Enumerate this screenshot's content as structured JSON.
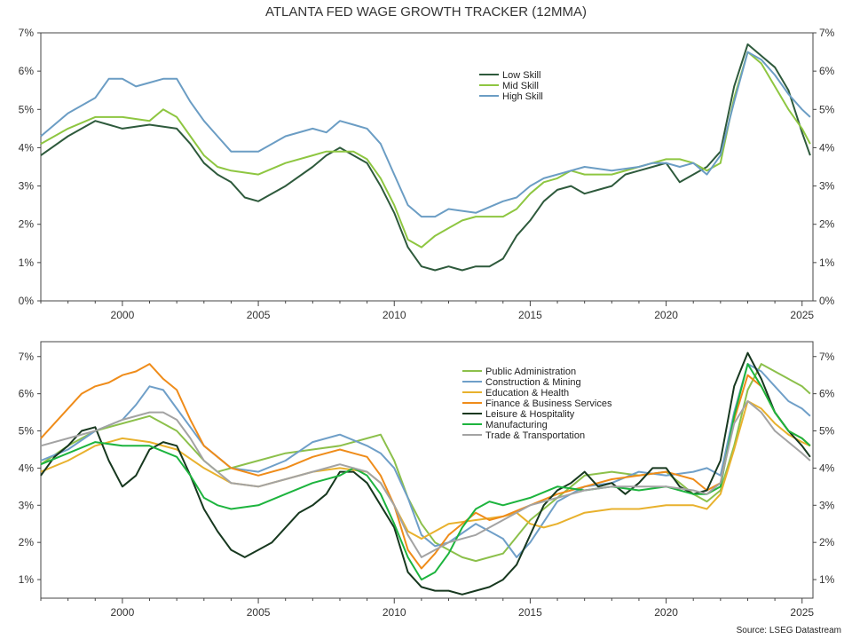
{
  "title": "ATLANTA FED WAGE GROWTH TRACKER (12MMA)",
  "source": "Source: LSEG Datastream",
  "colors": {
    "low_skill": "#2e5a3c",
    "mid_skill": "#8ec641",
    "high_skill": "#6b9dc4",
    "public_admin": "#8cc04b",
    "construction": "#6f9fc8",
    "education": "#e8b12d",
    "finance": "#ef8c1a",
    "leisure": "#17381f",
    "manufacturing": "#1db43e",
    "trade": "#a3a3a3"
  },
  "chart_data": [
    {
      "type": "line",
      "title": "ATLANTA FED WAGE GROWTH TRACKER (12MMA)",
      "x_ticks": [
        "2000",
        "2005",
        "2010",
        "2015",
        "2020",
        "2025"
      ],
      "y_ticks": [
        "0%",
        "1%",
        "2%",
        "3%",
        "4%",
        "5%",
        "6%",
        "7%"
      ],
      "xlim": [
        1997.0,
        2025.4
      ],
      "ylim": [
        0,
        7
      ],
      "legend_position": "top-center",
      "series": [
        {
          "name": "Low Skill",
          "color_key": "low_skill",
          "x": [
            1997.0,
            1998.0,
            1999.0,
            1999.5,
            2000.0,
            2001.0,
            2002.0,
            2002.5,
            2003.0,
            2003.5,
            2004.0,
            2004.5,
            2005.0,
            2006.0,
            2007.0,
            2007.5,
            2008.0,
            2008.5,
            2009.0,
            2009.5,
            2010.0,
            2010.5,
            2011.0,
            2011.5,
            2012.0,
            2012.5,
            2013.0,
            2013.5,
            2014.0,
            2014.5,
            2015.0,
            2015.5,
            2016.0,
            2016.5,
            2017.0,
            2017.5,
            2018.0,
            2018.5,
            2019.0,
            2019.5,
            2020.0,
            2020.5,
            2021.0,
            2021.5,
            2022.0,
            2022.5,
            2023.0,
            2023.5,
            2024.0,
            2024.5,
            2025.0,
            2025.3
          ],
          "y": [
            3.8,
            4.3,
            4.7,
            4.6,
            4.5,
            4.6,
            4.5,
            4.1,
            3.6,
            3.3,
            3.1,
            2.7,
            2.6,
            3.0,
            3.5,
            3.8,
            4.0,
            3.8,
            3.6,
            3.0,
            2.3,
            1.4,
            0.9,
            0.8,
            0.9,
            0.8,
            0.9,
            0.9,
            1.1,
            1.7,
            2.1,
            2.6,
            2.9,
            3.0,
            2.8,
            2.9,
            3.0,
            3.3,
            3.4,
            3.5,
            3.6,
            3.1,
            3.3,
            3.5,
            3.9,
            5.6,
            6.7,
            6.4,
            6.1,
            5.5,
            4.4,
            3.8
          ]
        },
        {
          "name": "Mid Skill",
          "color_key": "mid_skill",
          "x": [
            1997.0,
            1998.0,
            1999.0,
            2000.0,
            2001.0,
            2001.5,
            2002.0,
            2002.5,
            2003.0,
            2003.5,
            2004.0,
            2005.0,
            2006.0,
            2007.0,
            2007.5,
            2008.0,
            2008.5,
            2009.0,
            2009.5,
            2010.0,
            2010.5,
            2011.0,
            2011.5,
            2012.0,
            2012.5,
            2013.0,
            2014.0,
            2014.5,
            2015.0,
            2015.5,
            2016.0,
            2016.5,
            2017.0,
            2018.0,
            2019.0,
            2019.5,
            2020.0,
            2020.5,
            2021.0,
            2021.5,
            2022.0,
            2022.5,
            2023.0,
            2023.5,
            2024.0,
            2024.5,
            2025.0,
            2025.3
          ],
          "y": [
            4.1,
            4.5,
            4.8,
            4.8,
            4.7,
            5.0,
            4.8,
            4.3,
            3.8,
            3.5,
            3.4,
            3.3,
            3.6,
            3.8,
            3.9,
            3.9,
            3.9,
            3.7,
            3.2,
            2.5,
            1.6,
            1.4,
            1.7,
            1.9,
            2.1,
            2.2,
            2.2,
            2.4,
            2.8,
            3.1,
            3.2,
            3.4,
            3.3,
            3.3,
            3.5,
            3.6,
            3.7,
            3.7,
            3.6,
            3.4,
            3.6,
            5.3,
            6.5,
            6.2,
            5.6,
            5.0,
            4.5,
            4.1
          ]
        },
        {
          "name": "High Skill",
          "color_key": "high_skill",
          "x": [
            1997.0,
            1998.0,
            1999.0,
            1999.5,
            2000.0,
            2000.5,
            2001.0,
            2001.5,
            2002.0,
            2002.5,
            2003.0,
            2003.5,
            2004.0,
            2005.0,
            2006.0,
            2007.0,
            2007.5,
            2008.0,
            2008.5,
            2009.0,
            2009.5,
            2010.0,
            2010.5,
            2011.0,
            2011.5,
            2012.0,
            2013.0,
            2014.0,
            2014.5,
            2015.0,
            2015.5,
            2016.0,
            2017.0,
            2018.0,
            2019.0,
            2019.5,
            2020.0,
            2020.5,
            2021.0,
            2021.5,
            2022.0,
            2022.5,
            2023.0,
            2023.5,
            2024.0,
            2024.5,
            2025.0,
            2025.3
          ],
          "y": [
            4.3,
            4.9,
            5.3,
            5.8,
            5.8,
            5.6,
            5.7,
            5.8,
            5.8,
            5.2,
            4.7,
            4.3,
            3.9,
            3.9,
            4.3,
            4.5,
            4.4,
            4.7,
            4.6,
            4.5,
            4.1,
            3.3,
            2.5,
            2.2,
            2.2,
            2.4,
            2.3,
            2.6,
            2.7,
            3.0,
            3.2,
            3.3,
            3.5,
            3.4,
            3.5,
            3.6,
            3.6,
            3.5,
            3.6,
            3.3,
            3.8,
            5.2,
            6.5,
            6.3,
            5.9,
            5.4,
            5.0,
            4.8
          ]
        }
      ]
    },
    {
      "type": "line",
      "x_ticks": [
        "2000",
        "2005",
        "2010",
        "2015",
        "2020",
        "2025"
      ],
      "y_ticks": [
        "1%",
        "2%",
        "3%",
        "4%",
        "5%",
        "6%",
        "7%"
      ],
      "xlim": [
        1997.0,
        2025.4
      ],
      "ylim": [
        0.5,
        7.4
      ],
      "legend_position": "top-right",
      "series": [
        {
          "name": "Public Administration",
          "color_key": "public_admin",
          "x": [
            1997.0,
            1998.0,
            1999.0,
            2000.0,
            2001.0,
            2002.0,
            2003.0,
            2003.5,
            2004.0,
            2005.0,
            2006.0,
            2007.0,
            2008.0,
            2009.0,
            2009.5,
            2010.0,
            2010.5,
            2011.0,
            2011.5,
            2012.0,
            2012.5,
            2013.0,
            2013.5,
            2014.0,
            2015.0,
            2016.0,
            2017.0,
            2018.0,
            2019.0,
            2020.0,
            2021.0,
            2021.5,
            2022.0,
            2022.5,
            2023.0,
            2023.5,
            2024.0,
            2024.5,
            2025.0,
            2025.3
          ],
          "y": [
            4.1,
            4.6,
            5.0,
            5.2,
            5.4,
            5.0,
            4.2,
            3.9,
            4.0,
            4.2,
            4.4,
            4.5,
            4.6,
            4.8,
            4.9,
            4.2,
            3.2,
            2.5,
            2.0,
            1.8,
            1.6,
            1.5,
            1.6,
            1.7,
            2.6,
            3.2,
            3.8,
            3.9,
            3.8,
            3.9,
            3.3,
            3.1,
            3.4,
            4.6,
            6.1,
            6.8,
            6.6,
            6.4,
            6.2,
            6.0
          ]
        },
        {
          "name": "Construction & Mining",
          "color_key": "construction",
          "x": [
            1997.0,
            1998.0,
            1999.0,
            2000.0,
            2000.5,
            2001.0,
            2001.5,
            2002.0,
            2002.5,
            2003.0,
            2004.0,
            2005.0,
            2006.0,
            2007.0,
            2008.0,
            2009.0,
            2009.5,
            2010.0,
            2010.5,
            2011.0,
            2011.5,
            2012.0,
            2013.0,
            2013.5,
            2014.0,
            2014.5,
            2015.0,
            2016.0,
            2017.0,
            2018.0,
            2019.0,
            2020.0,
            2021.0,
            2021.5,
            2022.0,
            2022.5,
            2023.0,
            2023.5,
            2024.0,
            2024.5,
            2025.0,
            2025.3
          ],
          "y": [
            4.2,
            4.5,
            5.0,
            5.3,
            5.7,
            6.2,
            6.1,
            5.6,
            5.1,
            4.6,
            4.0,
            3.9,
            4.2,
            4.7,
            4.9,
            4.6,
            4.4,
            4.0,
            3.2,
            2.2,
            1.9,
            2.0,
            2.5,
            2.3,
            2.1,
            1.6,
            2.0,
            3.1,
            3.5,
            3.6,
            3.9,
            3.8,
            3.9,
            4.0,
            3.8,
            5.5,
            6.8,
            6.6,
            6.2,
            5.8,
            5.6,
            5.4
          ]
        },
        {
          "name": "Education & Health",
          "color_key": "education",
          "x": [
            1997.0,
            1998.0,
            1999.0,
            2000.0,
            2001.0,
            2002.0,
            2003.0,
            2004.0,
            2005.0,
            2006.0,
            2007.0,
            2008.0,
            2009.0,
            2009.5,
            2010.0,
            2010.5,
            2011.0,
            2011.5,
            2012.0,
            2013.0,
            2014.0,
            2014.5,
            2015.0,
            2015.5,
            2016.0,
            2017.0,
            2018.0,
            2019.0,
            2020.0,
            2021.0,
            2021.5,
            2022.0,
            2022.5,
            2023.0,
            2023.5,
            2024.0,
            2024.5,
            2025.0,
            2025.3
          ],
          "y": [
            3.9,
            4.2,
            4.6,
            4.8,
            4.7,
            4.5,
            4.0,
            3.6,
            3.5,
            3.7,
            3.9,
            4.0,
            3.9,
            3.6,
            3.0,
            2.3,
            2.1,
            2.3,
            2.5,
            2.6,
            2.7,
            2.8,
            2.5,
            2.4,
            2.5,
            2.8,
            2.9,
            2.9,
            3.0,
            3.0,
            2.9,
            3.3,
            4.5,
            5.8,
            5.6,
            5.2,
            4.9,
            4.7,
            4.6
          ]
        },
        {
          "name": "Finance & Business Services",
          "color_key": "finance",
          "x": [
            1997.0,
            1998.0,
            1998.5,
            1999.0,
            1999.5,
            2000.0,
            2000.5,
            2001.0,
            2001.5,
            2002.0,
            2002.5,
            2003.0,
            2004.0,
            2005.0,
            2006.0,
            2007.0,
            2008.0,
            2008.5,
            2009.0,
            2009.5,
            2010.0,
            2010.5,
            2011.0,
            2011.5,
            2012.0,
            2013.0,
            2013.5,
            2014.0,
            2015.0,
            2016.0,
            2017.0,
            2018.0,
            2019.0,
            2020.0,
            2021.0,
            2021.5,
            2022.0,
            2022.5,
            2023.0,
            2023.5,
            2024.0,
            2024.5,
            2025.0,
            2025.3
          ],
          "y": [
            4.8,
            5.6,
            6.0,
            6.2,
            6.3,
            6.5,
            6.6,
            6.8,
            6.4,
            6.1,
            5.3,
            4.6,
            4.0,
            3.8,
            4.0,
            4.3,
            4.5,
            4.4,
            4.3,
            3.8,
            3.0,
            1.8,
            1.3,
            1.7,
            2.2,
            2.8,
            2.6,
            2.7,
            3.0,
            3.3,
            3.5,
            3.7,
            3.8,
            3.9,
            3.7,
            3.4,
            3.6,
            5.3,
            6.5,
            6.2,
            5.5,
            5.0,
            4.8,
            4.6
          ]
        },
        {
          "name": "Leisure & Hospitality",
          "color_key": "leisure",
          "x": [
            1997.0,
            1997.5,
            1998.0,
            1998.5,
            1999.0,
            1999.5,
            2000.0,
            2000.5,
            2001.0,
            2001.5,
            2002.0,
            2002.5,
            2003.0,
            2003.5,
            2004.0,
            2004.5,
            2005.0,
            2005.5,
            2006.0,
            2006.5,
            2007.0,
            2007.5,
            2008.0,
            2008.5,
            2009.0,
            2009.5,
            2010.0,
            2010.5,
            2011.0,
            2011.5,
            2012.0,
            2012.5,
            2013.0,
            2013.5,
            2014.0,
            2014.5,
            2015.0,
            2015.5,
            2016.0,
            2016.5,
            2017.0,
            2017.5,
            2018.0,
            2018.5,
            2019.0,
            2019.5,
            2020.0,
            2020.5,
            2021.0,
            2021.5,
            2022.0,
            2022.5,
            2023.0,
            2023.5,
            2024.0,
            2024.5,
            2025.0,
            2025.3
          ],
          "y": [
            3.8,
            4.3,
            4.6,
            5.0,
            5.1,
            4.2,
            3.5,
            3.8,
            4.5,
            4.7,
            4.6,
            3.8,
            2.9,
            2.3,
            1.8,
            1.6,
            1.8,
            2.0,
            2.4,
            2.8,
            3.0,
            3.3,
            3.9,
            3.9,
            3.6,
            3.0,
            2.4,
            1.2,
            0.8,
            0.7,
            0.7,
            0.6,
            0.7,
            0.8,
            1.0,
            1.4,
            2.2,
            3.0,
            3.4,
            3.6,
            3.9,
            3.5,
            3.6,
            3.3,
            3.6,
            4.0,
            4.0,
            3.5,
            3.3,
            3.4,
            4.2,
            6.2,
            7.1,
            6.4,
            5.5,
            5.0,
            4.6,
            4.3
          ]
        },
        {
          "name": "Manufacturing",
          "color_key": "manufacturing",
          "x": [
            1997.0,
            1998.0,
            1999.0,
            2000.0,
            2001.0,
            2002.0,
            2002.5,
            2003.0,
            2003.5,
            2004.0,
            2005.0,
            2006.0,
            2007.0,
            2008.0,
            2008.5,
            2009.0,
            2009.5,
            2010.0,
            2010.5,
            2011.0,
            2011.5,
            2012.0,
            2012.5,
            2013.0,
            2013.5,
            2014.0,
            2015.0,
            2016.0,
            2017.0,
            2018.0,
            2019.0,
            2020.0,
            2021.0,
            2021.5,
            2022.0,
            2022.5,
            2023.0,
            2023.5,
            2024.0,
            2024.5,
            2025.0,
            2025.3
          ],
          "y": [
            4.1,
            4.4,
            4.7,
            4.6,
            4.6,
            4.3,
            3.8,
            3.2,
            3.0,
            2.9,
            3.0,
            3.3,
            3.6,
            3.8,
            4.0,
            3.8,
            3.3,
            2.5,
            1.6,
            1.0,
            1.2,
            1.7,
            2.4,
            2.9,
            3.1,
            3.0,
            3.2,
            3.5,
            3.4,
            3.5,
            3.4,
            3.5,
            3.3,
            3.3,
            3.5,
            5.4,
            6.8,
            6.2,
            5.5,
            5.0,
            4.8,
            4.6
          ]
        },
        {
          "name": "Trade & Transportation",
          "color_key": "trade",
          "x": [
            1997.0,
            1998.0,
            1999.0,
            2000.0,
            2001.0,
            2001.5,
            2002.0,
            2002.5,
            2003.0,
            2004.0,
            2005.0,
            2006.0,
            2007.0,
            2008.0,
            2009.0,
            2009.5,
            2010.0,
            2010.5,
            2011.0,
            2011.5,
            2012.0,
            2013.0,
            2014.0,
            2015.0,
            2016.0,
            2017.0,
            2018.0,
            2019.0,
            2020.0,
            2021.0,
            2021.5,
            2022.0,
            2022.5,
            2023.0,
            2023.5,
            2024.0,
            2024.5,
            2025.0,
            2025.3
          ],
          "y": [
            4.6,
            4.8,
            5.0,
            5.3,
            5.5,
            5.5,
            5.3,
            4.8,
            4.2,
            3.6,
            3.5,
            3.7,
            3.9,
            4.1,
            3.9,
            3.6,
            3.0,
            2.2,
            1.6,
            1.8,
            2.0,
            2.2,
            2.6,
            3.0,
            3.2,
            3.4,
            3.5,
            3.5,
            3.5,
            3.4,
            3.3,
            3.6,
            5.2,
            5.8,
            5.5,
            5.0,
            4.7,
            4.4,
            4.2
          ]
        }
      ]
    }
  ]
}
